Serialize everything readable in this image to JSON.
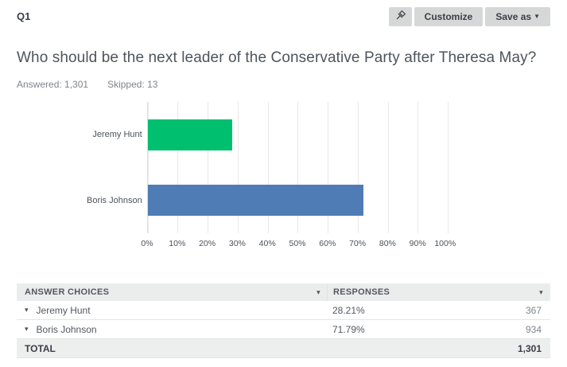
{
  "header": {
    "question_number": "Q1",
    "actions": {
      "pin_button_icon": "pushpin-icon",
      "customize_label": "Customize",
      "save_as_label": "Save as",
      "save_as_caret": "▼"
    }
  },
  "question": {
    "title": "Who should be the next leader of the Conservative Party after Theresa May?",
    "answered": "Answered: 1,301",
    "skipped": "Skipped: 13"
  },
  "chart_data": {
    "type": "bar",
    "orientation": "horizontal",
    "title": "",
    "xlabel": "",
    "ylabel": "",
    "categories": [
      "Jeremy Hunt",
      "Boris Johnson"
    ],
    "values": [
      28.21,
      71.79
    ],
    "bar_colors": [
      "#00BF6F",
      "#4F7CB5"
    ],
    "x_tick_labels": [
      "0%",
      "10%",
      "20%",
      "30%",
      "40%",
      "50%",
      "60%",
      "70%",
      "80%",
      "90%",
      "100%"
    ],
    "xlim": [
      0,
      100
    ],
    "grid": "vertical gridlines every 10%",
    "legend": "none"
  },
  "table": {
    "header": {
      "answer_choices_label": "ANSWER CHOICES",
      "responses_label": "RESPONSES",
      "sort_caret": "▾"
    },
    "rows": [
      {
        "caret": "▾",
        "choice": "Jeremy Hunt",
        "percent": "28.21%",
        "count": "367"
      },
      {
        "caret": "▾",
        "choice": "Boris Johnson",
        "percent": "71.79%",
        "count": "934"
      }
    ],
    "total": {
      "label": "TOTAL",
      "count": "1,301"
    }
  },
  "colors": {
    "accent_green": "#00BF6F",
    "accent_blue": "#4F7CB5",
    "button_bg": "#D6D8D8",
    "dark_text": "#3A3F46",
    "body_text": "#53585F",
    "muted_text": "#7E858C",
    "gridline": "#E8E8E8",
    "table_header_bg": "#EBEDED",
    "table_total_bg": "#EDEFEF",
    "table_border": "#E3E6E6"
  }
}
